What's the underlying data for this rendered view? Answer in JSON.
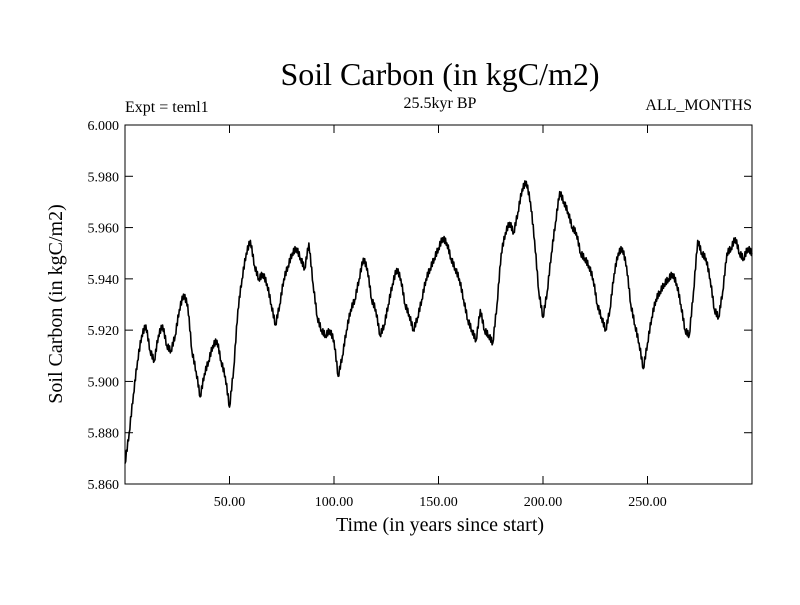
{
  "chart_data": {
    "type": "line",
    "title": "Soil Carbon (in kgC/m2)",
    "subtitle_left": "Expt = teml1",
    "subtitle_center": "25.5kyr BP",
    "subtitle_right": "ALL_MONTHS",
    "xlabel": "Time (in years since start)",
    "ylabel": "Soil Carbon (in kgC/m2)",
    "xlim": [
      0,
      300
    ],
    "ylim": [
      5.86,
      6.0
    ],
    "x_ticks": [
      50,
      100,
      150,
      200,
      250
    ],
    "x_tick_labels": [
      "50.00",
      "100.00",
      "150.00",
      "200.00",
      "250.00"
    ],
    "y_ticks": [
      5.86,
      5.88,
      5.9,
      5.92,
      5.94,
      5.96,
      5.98,
      6.0
    ],
    "y_tick_labels": [
      "5.860",
      "5.880",
      "5.900",
      "5.920",
      "5.940",
      "5.960",
      "5.980",
      "6.000"
    ],
    "line_color": "#000000",
    "series": [
      {
        "name": "Soil Carbon",
        "x": [
          0,
          2,
          4,
          6,
          8,
          10,
          12,
          14,
          16,
          18,
          20,
          22,
          24,
          26,
          28,
          30,
          32,
          34,
          36,
          38,
          40,
          42,
          44,
          46,
          48,
          50,
          52,
          54,
          56,
          58,
          60,
          62,
          64,
          66,
          68,
          70,
          72,
          74,
          76,
          78,
          80,
          82,
          84,
          86,
          88,
          90,
          92,
          94,
          96,
          98,
          100,
          102,
          104,
          106,
          108,
          110,
          112,
          114,
          116,
          118,
          120,
          122,
          124,
          126,
          128,
          130,
          132,
          134,
          136,
          138,
          140,
          142,
          144,
          146,
          148,
          150,
          152,
          154,
          156,
          158,
          160,
          162,
          164,
          166,
          168,
          170,
          172,
          174,
          176,
          178,
          180,
          182,
          184,
          186,
          188,
          190,
          192,
          194,
          196,
          198,
          200,
          202,
          204,
          206,
          208,
          210,
          212,
          214,
          216,
          218,
          220,
          222,
          224,
          226,
          228,
          230,
          232,
          234,
          236,
          238,
          240,
          242,
          244,
          246,
          248,
          250,
          252,
          254,
          256,
          258,
          260,
          262,
          264,
          266,
          268,
          270,
          272,
          274,
          276,
          278,
          280,
          282,
          284,
          286,
          288,
          290,
          292,
          294,
          296,
          298,
          300
        ],
        "values": [
          5.868,
          5.88,
          5.895,
          5.908,
          5.918,
          5.922,
          5.912,
          5.908,
          5.918,
          5.922,
          5.914,
          5.912,
          5.918,
          5.928,
          5.934,
          5.93,
          5.912,
          5.904,
          5.894,
          5.903,
          5.908,
          5.914,
          5.916,
          5.908,
          5.902,
          5.89,
          5.905,
          5.928,
          5.94,
          5.95,
          5.955,
          5.945,
          5.94,
          5.942,
          5.938,
          5.93,
          5.922,
          5.93,
          5.94,
          5.945,
          5.95,
          5.952,
          5.948,
          5.944,
          5.954,
          5.938,
          5.925,
          5.92,
          5.918,
          5.92,
          5.916,
          5.902,
          5.91,
          5.92,
          5.928,
          5.932,
          5.94,
          5.948,
          5.944,
          5.932,
          5.928,
          5.918,
          5.922,
          5.93,
          5.938,
          5.944,
          5.94,
          5.93,
          5.926,
          5.92,
          5.925,
          5.932,
          5.94,
          5.944,
          5.948,
          5.952,
          5.956,
          5.954,
          5.948,
          5.944,
          5.94,
          5.932,
          5.924,
          5.92,
          5.916,
          5.928,
          5.92,
          5.918,
          5.915,
          5.93,
          5.95,
          5.958,
          5.962,
          5.958,
          5.966,
          5.975,
          5.978,
          5.97,
          5.955,
          5.935,
          5.925,
          5.935,
          5.95,
          5.962,
          5.974,
          5.97,
          5.966,
          5.96,
          5.958,
          5.95,
          5.948,
          5.945,
          5.94,
          5.93,
          5.925,
          5.92,
          5.928,
          5.942,
          5.95,
          5.952,
          5.945,
          5.93,
          5.922,
          5.915,
          5.905,
          5.915,
          5.925,
          5.932,
          5.935,
          5.938,
          5.94,
          5.942,
          5.938,
          5.93,
          5.92,
          5.918,
          5.935,
          5.955,
          5.95,
          5.948,
          5.94,
          5.928,
          5.925,
          5.935,
          5.95,
          5.952,
          5.956,
          5.95,
          5.948,
          5.952,
          5.95
        ]
      }
    ]
  }
}
